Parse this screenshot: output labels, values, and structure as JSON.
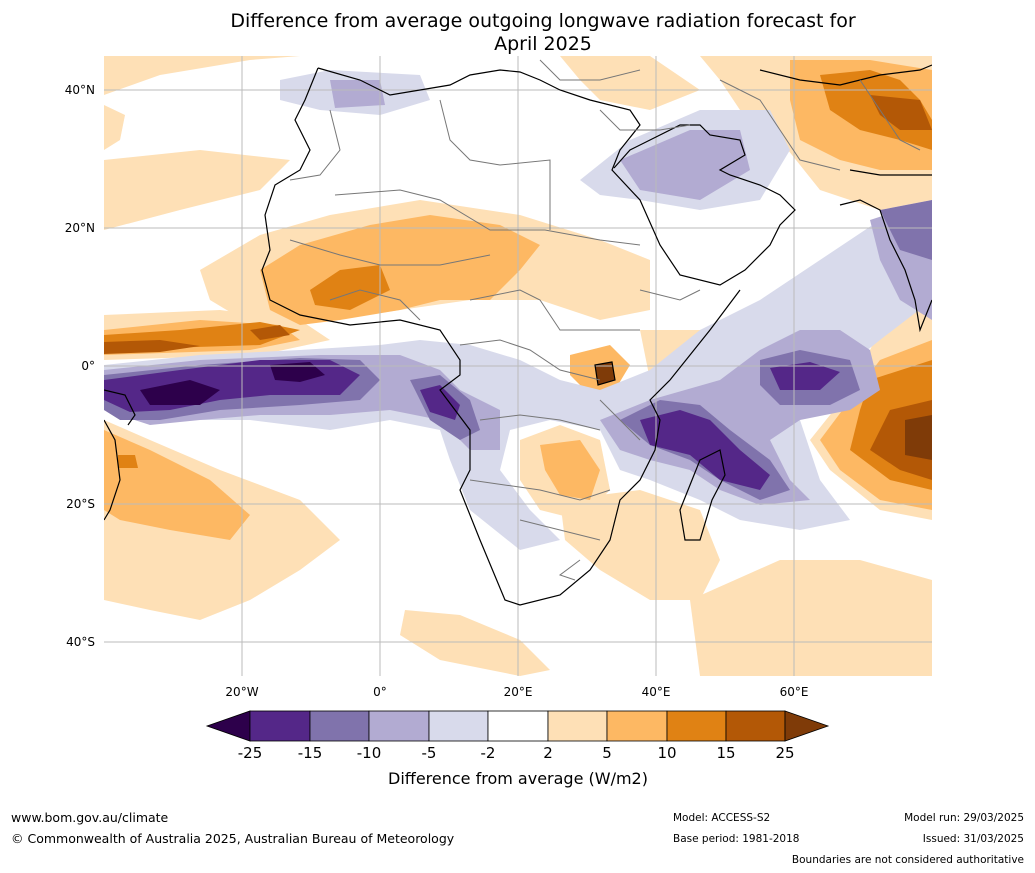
{
  "title": {
    "line1": "Difference from average outgoing longwave radiation forecast for",
    "line2": "April 2025"
  },
  "lat_labels": [
    "40°N",
    "20°N",
    "0°",
    "20°S",
    "40°S"
  ],
  "lon_labels": [
    "20°W",
    "0°",
    "20°E",
    "40°E",
    "60°E"
  ],
  "colorbar": {
    "ticks": [
      "-25",
      "-15",
      "-10",
      "-5",
      "-2",
      "2",
      "5",
      "10",
      "15",
      "25"
    ],
    "colors": [
      "#2d004b",
      "#542788",
      "#8073ac",
      "#b2abd2",
      "#d8daeb",
      "#ffffff",
      "#fee0b6",
      "#fdb863",
      "#e08214",
      "#b35806",
      "#7f3b08"
    ],
    "label": "Difference from average (W/m2)"
  },
  "footer": {
    "website": "www.bom.gov.au/climate",
    "copyright": "© Commonwealth of Australia 2025, Australian Bureau of Meteorology",
    "model": "Model: ACCESS-S2",
    "base_period": "Base period: 1981-2018",
    "model_run": "Model run: 29/03/2025",
    "issued": "Issued: 31/03/2025",
    "disclaimer": "Boundaries are not considered authoritative"
  }
}
